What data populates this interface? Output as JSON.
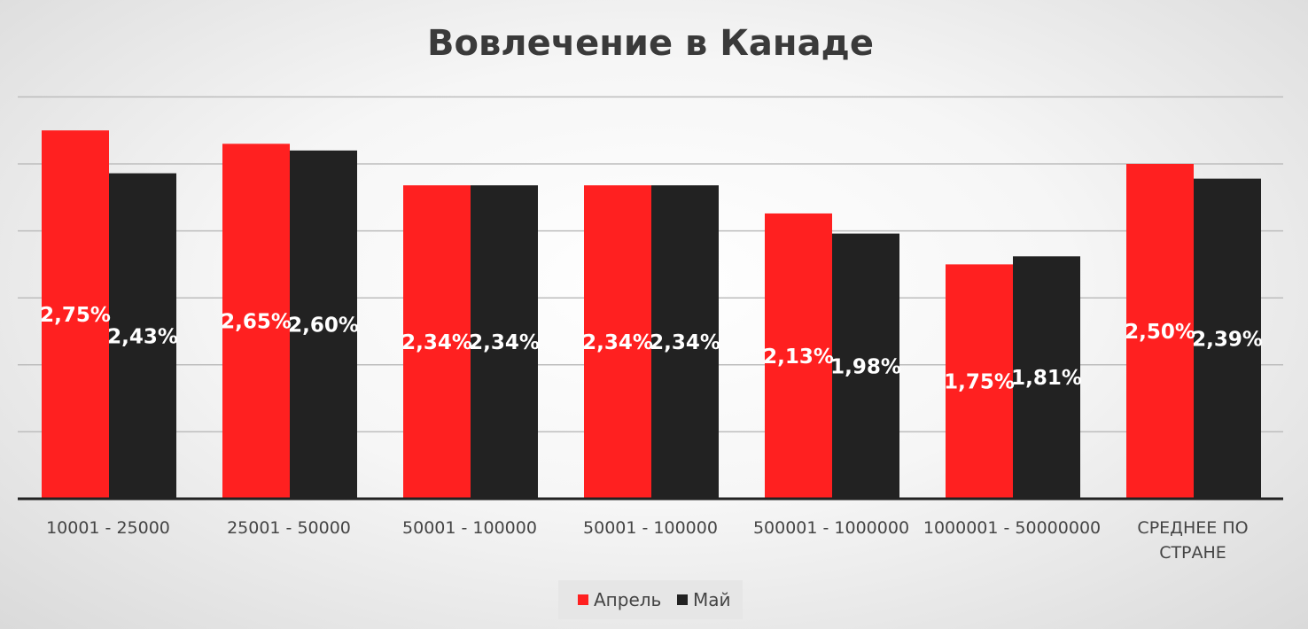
{
  "chart_data": {
    "type": "bar",
    "title": "Вовлечение в Канаде",
    "categories": [
      [
        "10001 - 25000"
      ],
      [
        "25001 - 50000"
      ],
      [
        "50001 - 100000"
      ],
      [
        "50001 - 100000"
      ],
      [
        "500001 - 1000000"
      ],
      [
        "1000001 - 50000000"
      ],
      [
        "СРЕДНЕЕ ПО",
        "СТРАНЕ"
      ]
    ],
    "series": [
      {
        "name": "Апрель",
        "color": "#ff2020",
        "values": [
          2.75,
          2.65,
          2.34,
          2.34,
          2.13,
          1.75,
          2.5
        ],
        "labels": [
          "2,75%",
          "2,65%",
          "2,34%",
          "2,34%",
          "2,13%",
          "1,75%",
          "2,50%"
        ]
      },
      {
        "name": "Май",
        "color": "#222222",
        "values": [
          2.43,
          2.6,
          2.34,
          2.34,
          1.98,
          1.81,
          2.39
        ],
        "labels": [
          "2,43%",
          "2,60%",
          "2,34%",
          "2,34%",
          "1,98%",
          "1,81%",
          "2,39%"
        ]
      }
    ],
    "ylim": [
      0,
      3.0
    ],
    "ytick_step": 0.5,
    "y_axis_labels_shown": false,
    "grid": true,
    "legend_position": "bottom"
  }
}
